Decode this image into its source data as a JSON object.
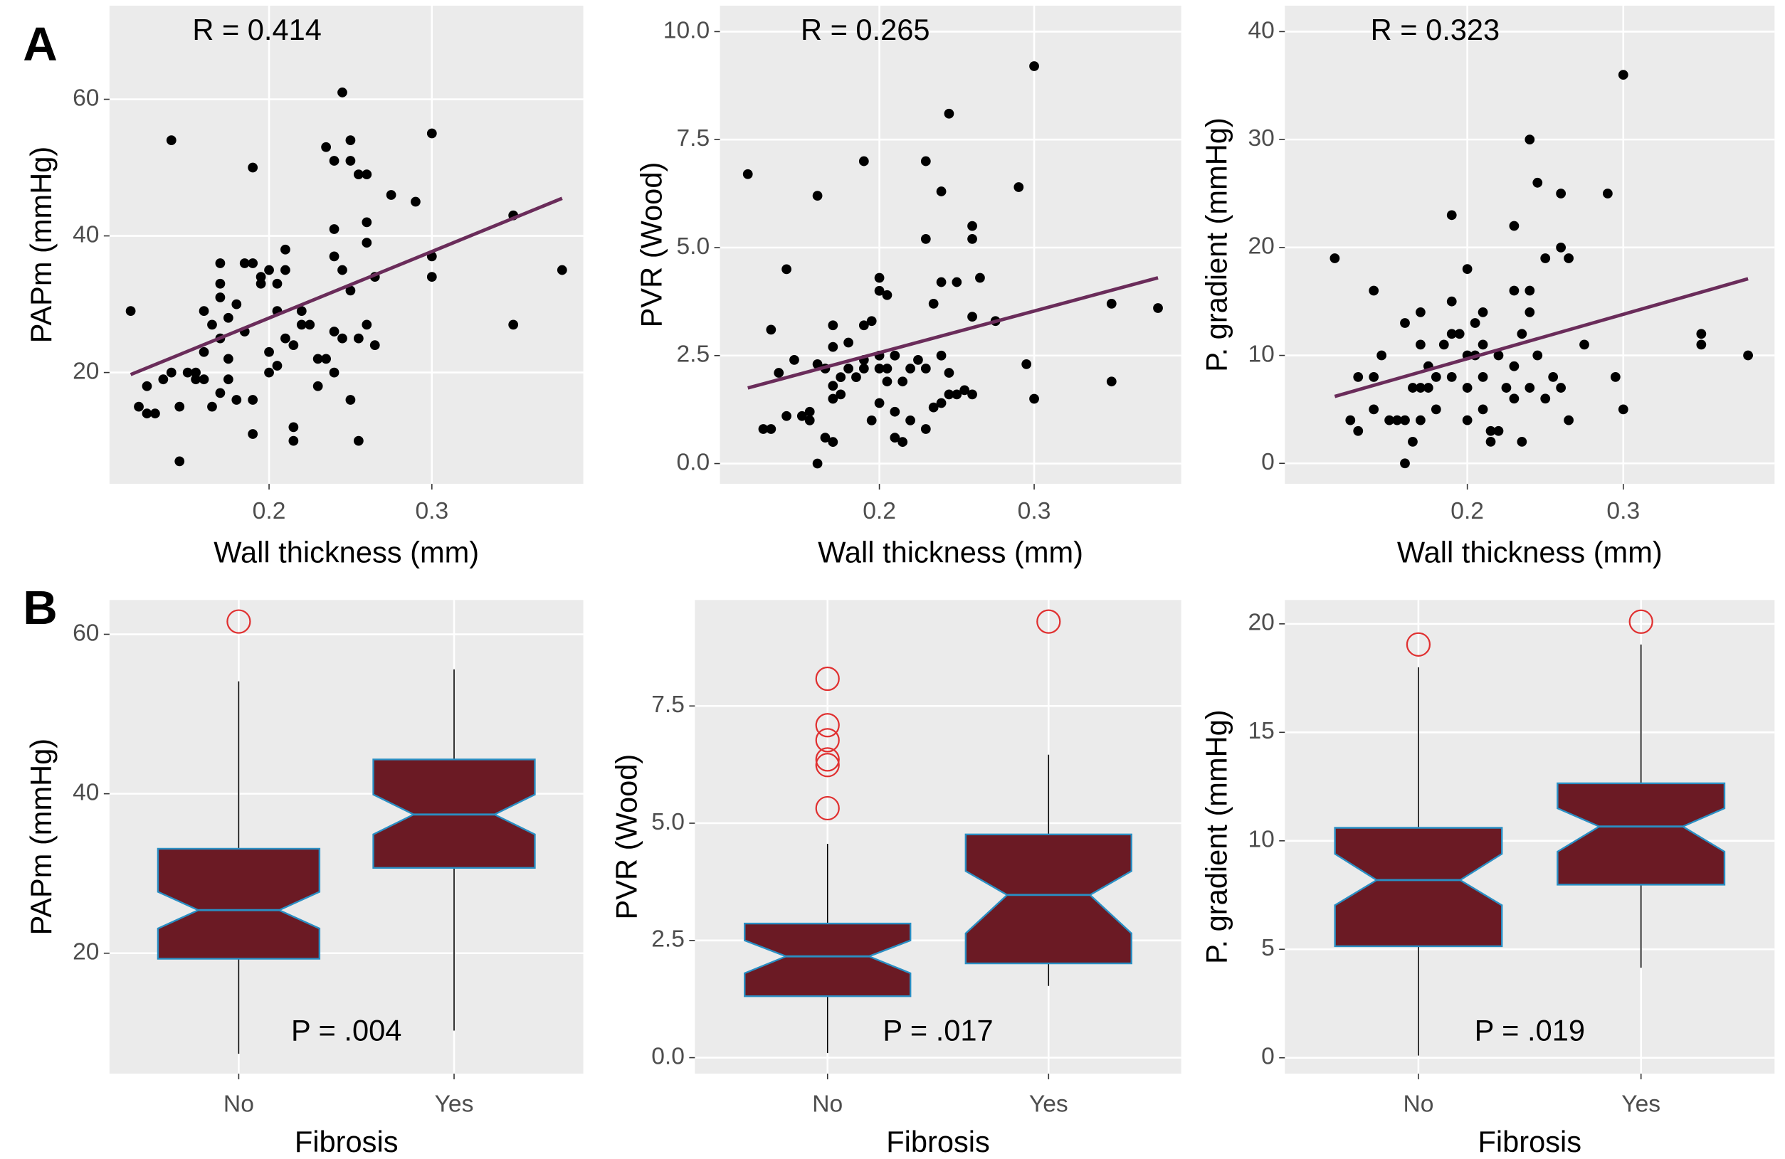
{
  "panel_labels": [
    "A",
    "B"
  ],
  "chart_data": [
    {
      "type": "scatter",
      "annotation": "R =  0.414",
      "xlabel": "Wall thickness (mm)",
      "ylabel": "PAPm (mmHg)",
      "xlim": [
        0.102,
        0.393
      ],
      "xticks": [
        0.2,
        0.3
      ],
      "ylim": [
        3.7,
        73.7
      ],
      "yticks": [
        20,
        40,
        60
      ],
      "grid": true,
      "color": "#000000",
      "x": [
        0.115,
        0.12,
        0.125,
        0.125,
        0.13,
        0.135,
        0.14,
        0.14,
        0.145,
        0.145,
        0.15,
        0.155,
        0.155,
        0.16,
        0.16,
        0.16,
        0.165,
        0.165,
        0.17,
        0.17,
        0.17,
        0.17,
        0.17,
        0.175,
        0.175,
        0.175,
        0.18,
        0.18,
        0.185,
        0.185,
        0.19,
        0.19,
        0.19,
        0.19,
        0.195,
        0.195,
        0.2,
        0.2,
        0.2,
        0.205,
        0.205,
        0.205,
        0.21,
        0.21,
        0.21,
        0.215,
        0.215,
        0.215,
        0.22,
        0.22,
        0.225,
        0.23,
        0.23,
        0.235,
        0.235,
        0.24,
        0.24,
        0.24,
        0.24,
        0.24,
        0.245,
        0.245,
        0.245,
        0.25,
        0.25,
        0.25,
        0.25,
        0.255,
        0.255,
        0.255,
        0.26,
        0.26,
        0.26,
        0.26,
        0.265,
        0.265,
        0.275,
        0.29,
        0.3,
        0.3,
        0.3,
        0.35,
        0.35,
        0.38
      ],
      "y": [
        29,
        15,
        14,
        18,
        14,
        19,
        54,
        20,
        15,
        7,
        20,
        20,
        19,
        29,
        23,
        19,
        27,
        15,
        36,
        33,
        31,
        25,
        17,
        28,
        22,
        19,
        16,
        30,
        26,
        36,
        36,
        50,
        11,
        16,
        33,
        34,
        35,
        20,
        23,
        33,
        29,
        21,
        38,
        35,
        25,
        24,
        12,
        10,
        27,
        29,
        27,
        22,
        18,
        22,
        53,
        51,
        41,
        37,
        26,
        20,
        61,
        35,
        25,
        51,
        54,
        32,
        16,
        49,
        25,
        10,
        49,
        42,
        39,
        27,
        24,
        34,
        46,
        45,
        55,
        37,
        34,
        43,
        27,
        35
      ],
      "trend": {
        "x": [
          0.115,
          0.38
        ],
        "y": [
          19.7,
          45.5
        ],
        "color": "#6a2c5a"
      }
    },
    {
      "type": "scatter",
      "annotation": "R =  0.265",
      "xlabel": "Wall thickness (mm)",
      "ylabel": "PVR (Wood)",
      "xlim": [
        0.097,
        0.395
      ],
      "xticks": [
        0.2,
        0.3
      ],
      "ylim": [
        -0.47,
        10.6
      ],
      "yticks": [
        {
          "value": 0,
          "label": "0.0"
        },
        2.5,
        {
          "value": 5,
          "label": "5.0"
        },
        7.5,
        {
          "value": 10,
          "label": "10.0"
        }
      ],
      "grid": true,
      "color": "#000000",
      "x": [
        0.115,
        0.125,
        0.13,
        0.13,
        0.135,
        0.14,
        0.14,
        0.145,
        0.15,
        0.155,
        0.155,
        0.16,
        0.16,
        0.16,
        0.165,
        0.165,
        0.17,
        0.17,
        0.17,
        0.17,
        0.17,
        0.175,
        0.175,
        0.18,
        0.18,
        0.185,
        0.19,
        0.19,
        0.19,
        0.19,
        0.195,
        0.195,
        0.2,
        0.2,
        0.2,
        0.2,
        0.2,
        0.205,
        0.205,
        0.205,
        0.21,
        0.21,
        0.21,
        0.215,
        0.215,
        0.22,
        0.22,
        0.225,
        0.23,
        0.23,
        0.23,
        0.23,
        0.235,
        0.235,
        0.24,
        0.24,
        0.24,
        0.24,
        0.245,
        0.245,
        0.245,
        0.25,
        0.25,
        0.255,
        0.26,
        0.26,
        0.26,
        0.26,
        0.265,
        0.275,
        0.29,
        0.295,
        0.3,
        0.3,
        0.35,
        0.35,
        0.38
      ],
      "y": [
        6.7,
        0.8,
        0.8,
        3.1,
        2.1,
        4.5,
        1.1,
        2.4,
        1.1,
        1.0,
        1.2,
        6.2,
        0.0,
        2.3,
        2.2,
        0.6,
        3.2,
        2.7,
        1.8,
        1.5,
        0.5,
        2.0,
        1.6,
        2.8,
        2.2,
        2.0,
        7.0,
        3.2,
        2.4,
        2.2,
        3.3,
        1.0,
        4.3,
        4.0,
        2.5,
        2.2,
        1.4,
        3.9,
        2.2,
        1.9,
        2.5,
        1.2,
        0.6,
        1.9,
        0.5,
        2.2,
        1.0,
        2.4,
        7.0,
        5.2,
        2.2,
        0.8,
        3.7,
        1.3,
        6.3,
        4.2,
        2.5,
        1.4,
        8.1,
        2.1,
        1.6,
        4.2,
        1.6,
        1.7,
        5.5,
        5.2,
        3.4,
        1.6,
        4.3,
        3.3,
        6.4,
        2.3,
        9.2,
        1.5,
        3.7,
        1.9,
        3.6
      ],
      "trend": {
        "x": [
          0.115,
          0.38
        ],
        "y": [
          1.75,
          4.3
        ],
        "color": "#6a2c5a"
      }
    },
    {
      "type": "scatter",
      "annotation": "R =  0.323",
      "xlabel": "Wall thickness (mm)",
      "ylabel": "P. gradient (mmHg)",
      "xlim": [
        0.083,
        0.397
      ],
      "xticks": [
        0.2,
        0.3
      ],
      "ylim": [
        -1.9,
        42.4
      ],
      "yticks": [
        0,
        10,
        20,
        30,
        40
      ],
      "grid": true,
      "color": "#000000",
      "x": [
        0.115,
        0.125,
        0.13,
        0.13,
        0.14,
        0.14,
        0.14,
        0.145,
        0.15,
        0.155,
        0.16,
        0.16,
        0.16,
        0.165,
        0.165,
        0.17,
        0.17,
        0.17,
        0.17,
        0.175,
        0.175,
        0.18,
        0.18,
        0.185,
        0.19,
        0.19,
        0.19,
        0.19,
        0.195,
        0.2,
        0.2,
        0.2,
        0.2,
        0.205,
        0.205,
        0.21,
        0.21,
        0.21,
        0.21,
        0.215,
        0.215,
        0.22,
        0.22,
        0.225,
        0.23,
        0.23,
        0.23,
        0.23,
        0.235,
        0.235,
        0.24,
        0.24,
        0.24,
        0.24,
        0.245,
        0.245,
        0.25,
        0.25,
        0.255,
        0.26,
        0.26,
        0.26,
        0.265,
        0.265,
        0.275,
        0.29,
        0.295,
        0.3,
        0.3,
        0.35,
        0.35,
        0.38
      ],
      "y": [
        19,
        4,
        8,
        3,
        16,
        8,
        5,
        10,
        4,
        4,
        13,
        4,
        0,
        7,
        2,
        14,
        11,
        7,
        4,
        7,
        9,
        8,
        5,
        11,
        23,
        15,
        12,
        8,
        12,
        18,
        10,
        7,
        4,
        13,
        10,
        14,
        11,
        8,
        5,
        3,
        2,
        10,
        3,
        7,
        22,
        16,
        9,
        6,
        12,
        2,
        30,
        16,
        14,
        7,
        26,
        10,
        19,
        6,
        8,
        25,
        20,
        7,
        19,
        4,
        11,
        25,
        8,
        36,
        5,
        12,
        11,
        10
      ],
      "trend": {
        "x": [
          0.115,
          0.38
        ],
        "y": [
          6.2,
          17.1
        ],
        "color": "#6a2c5a"
      }
    },
    {
      "type": "boxplot",
      "annotation": "P = .004",
      "xlabel": "Fibrosis",
      "ylabel": "PAPm (mmHg)",
      "categories": [
        "No",
        "Yes"
      ],
      "ylim": [
        4.9,
        64.3
      ],
      "yticks": [
        20,
        40,
        60
      ],
      "grid": true,
      "fill": "#6b1a24",
      "stroke": "#2a8fc4",
      "outlier_color": "#e03030",
      "boxes": [
        {
          "whisker_low": 7.4,
          "q1": 19.3,
          "median": 25.4,
          "q3": 33.1,
          "whisker_high": 54.1,
          "notch_low": 23.1,
          "notch_high": 27.7,
          "outliers": [
            61.6
          ]
        },
        {
          "whisker_low": 10.3,
          "q1": 30.7,
          "median": 37.4,
          "q3": 44.3,
          "whisker_high": 55.6,
          "notch_low": 34.9,
          "notch_high": 39.9,
          "outliers": []
        }
      ]
    },
    {
      "type": "boxplot",
      "annotation": "P = .017",
      "xlabel": "Fibrosis",
      "ylabel": "PVR (Wood)",
      "categories": [
        "No",
        "Yes"
      ],
      "ylim": [
        -0.34,
        9.76
      ],
      "yticks": [
        {
          "value": 0,
          "label": "0.0"
        },
        2.5,
        {
          "value": 5,
          "label": "5.0"
        },
        7.5
      ],
      "grid": true,
      "fill": "#6b1a24",
      "stroke": "#2a8fc4",
      "outlier_color": "#e03030",
      "boxes": [
        {
          "whisker_low": 0.1,
          "q1": 1.31,
          "median": 2.16,
          "q3": 2.86,
          "whisker_high": 4.56,
          "notch_low": 1.8,
          "notch_high": 2.5,
          "outliers": [
            8.08,
            7.09,
            6.77,
            6.36,
            6.24,
            5.32
          ]
        },
        {
          "whisker_low": 1.53,
          "q1": 2.01,
          "median": 3.47,
          "q3": 4.76,
          "whisker_high": 6.46,
          "notch_low": 2.65,
          "notch_high": 3.98,
          "outliers": [
            9.3
          ]
        }
      ]
    },
    {
      "type": "boxplot",
      "annotation": "P = .019",
      "xlabel": "Fibrosis",
      "ylabel": "P. gradient (mmHg)",
      "categories": [
        "No",
        "Yes"
      ],
      "ylim": [
        -0.73,
        21.1
      ],
      "yticks": [
        0,
        5,
        10,
        15,
        20
      ],
      "grid": true,
      "fill": "#6b1a24",
      "stroke": "#2a8fc4",
      "outlier_color": "#e03030",
      "boxes": [
        {
          "whisker_low": 0.1,
          "q1": 5.14,
          "median": 8.19,
          "q3": 10.6,
          "whisker_high": 18.0,
          "notch_low": 7.03,
          "notch_high": 9.4,
          "outliers": [
            19.05
          ]
        },
        {
          "whisker_low": 4.15,
          "q1": 7.98,
          "median": 10.66,
          "q3": 12.65,
          "whisker_high": 19.05,
          "notch_low": 9.5,
          "notch_high": 11.5,
          "outliers": [
            20.1
          ]
        }
      ]
    }
  ]
}
